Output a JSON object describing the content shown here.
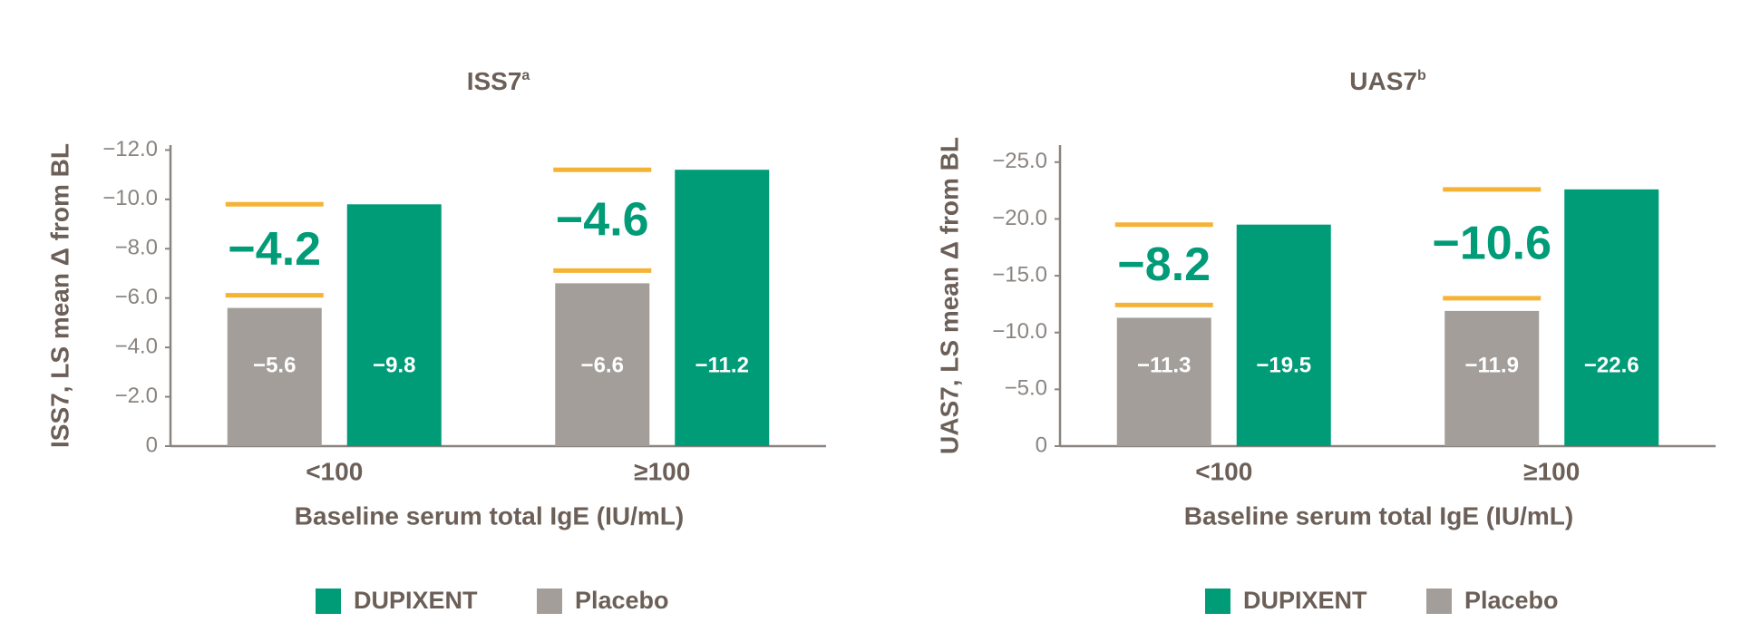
{
  "chart_data": [
    {
      "type": "bar",
      "title": "ISS7",
      "title_sup": "a",
      "y_label": "ISS7,  LS mean Δ from BL",
      "x_label": "Baseline serum total IgE (IU/mL)",
      "categories": [
        "<100",
        "≥100"
      ],
      "series": [
        {
          "name": "DUPIXENT",
          "color": "#009b77",
          "values": [
            -9.8,
            -11.2
          ],
          "value_labels": [
            "−9.8",
            "−11.2"
          ]
        },
        {
          "name": "Placebo",
          "color": "#a39e9a",
          "values": [
            -5.6,
            -6.6
          ],
          "value_labels": [
            "−5.6",
            "−6.6"
          ]
        }
      ],
      "annotations": [
        "−4.2",
        "−4.6"
      ],
      "annotation_color": "#f5b335",
      "ylim": [
        0,
        -12.2
      ],
      "yticks": [
        {
          "value": 0,
          "label": "0"
        },
        {
          "value": -2,
          "label": "−2.0"
        },
        {
          "value": -4,
          "label": "−4.0"
        },
        {
          "value": -6,
          "label": "−6.0"
        },
        {
          "value": -8,
          "label": "−8.0"
        },
        {
          "value": -10,
          "label": "−10.0"
        },
        {
          "value": -12,
          "label": "−12.0"
        }
      ]
    },
    {
      "type": "bar",
      "title": "UAS7",
      "title_sup": "b",
      "y_label": "UAS7,  LS mean Δ from BL",
      "x_label": "Baseline serum total IgE (IU/mL)",
      "categories": [
        "<100",
        "≥100"
      ],
      "series": [
        {
          "name": "DUPIXENT",
          "color": "#009b77",
          "values": [
            -19.5,
            -22.6
          ],
          "value_labels": [
            "−19.5",
            "−22.6"
          ]
        },
        {
          "name": "Placebo",
          "color": "#a39e9a",
          "values": [
            -11.3,
            -11.9
          ],
          "value_labels": [
            "−11.3",
            "−11.9"
          ]
        }
      ],
      "annotations": [
        "−8.2",
        "−10.6"
      ],
      "annotation_color": "#f5b335",
      "ylim": [
        0,
        -26.5
      ],
      "yticks": [
        {
          "value": 0,
          "label": "0"
        },
        {
          "value": -5,
          "label": "−5.0"
        },
        {
          "value": -10,
          "label": "−10.0"
        },
        {
          "value": -15,
          "label": "−15.0"
        },
        {
          "value": -20,
          "label": "−20.0"
        },
        {
          "value": -25,
          "label": "−25.0"
        }
      ]
    }
  ]
}
